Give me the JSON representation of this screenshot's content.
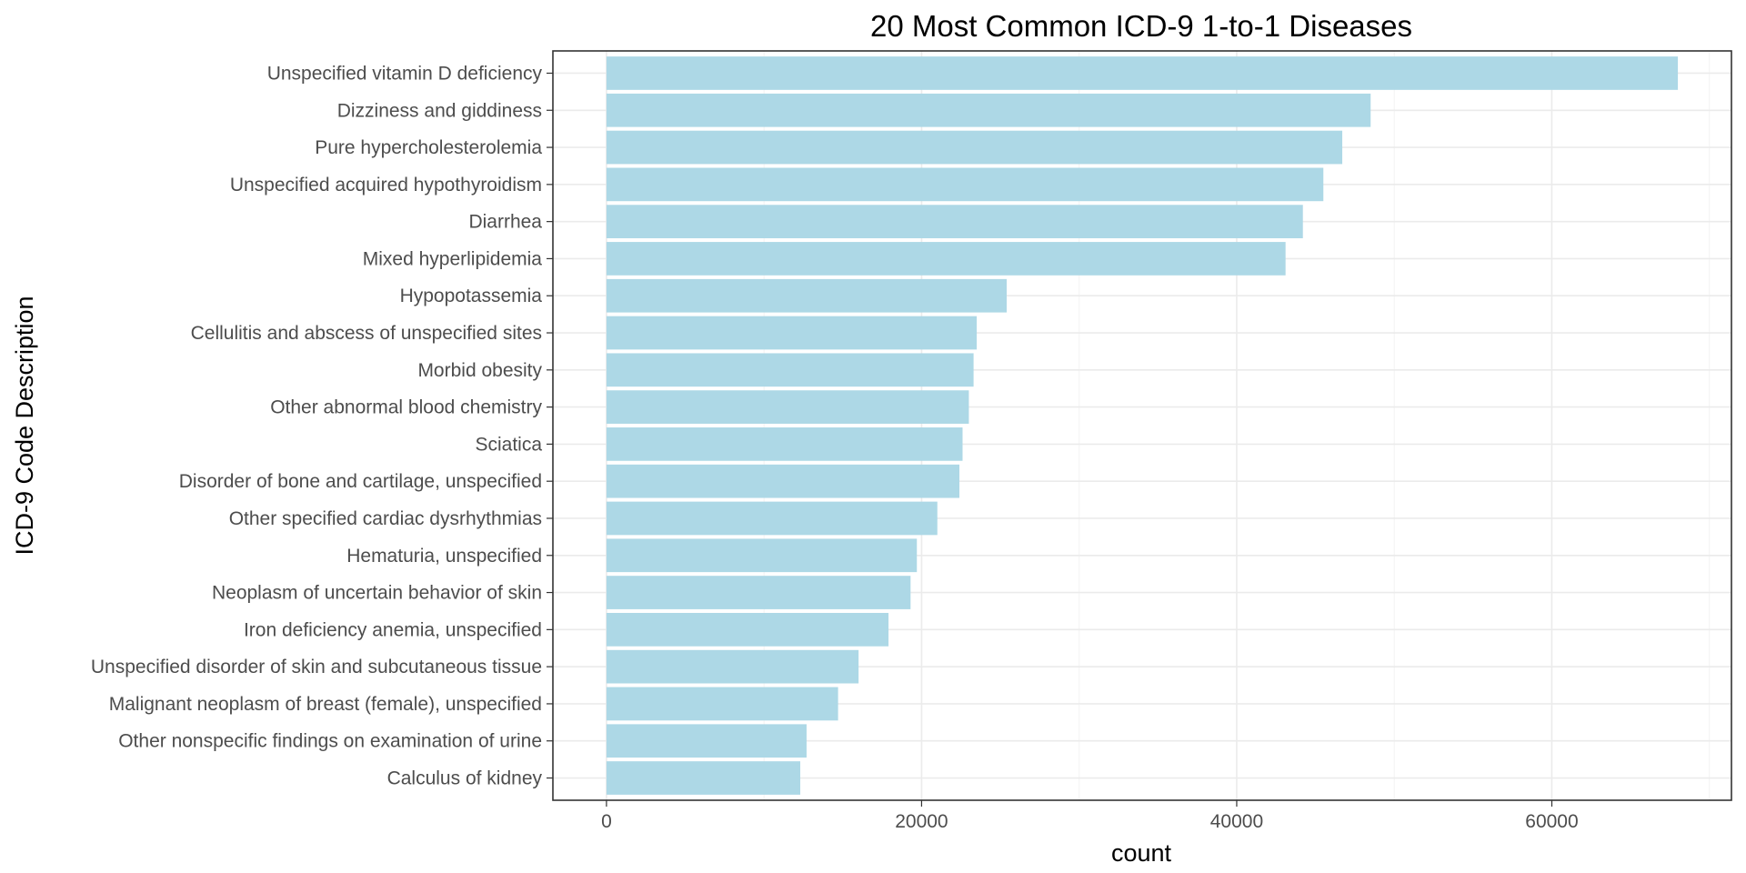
{
  "chart_data": {
    "type": "bar",
    "orientation": "horizontal",
    "title": "20 Most Common ICD-9 1-to-1 Diseases",
    "xlabel": "count",
    "ylabel": "ICD-9 Code Description",
    "bar_color": "#add8e6",
    "grid": true,
    "xlim": [
      -3400,
      71400
    ],
    "x_ticks": [
      0,
      20000,
      40000,
      60000
    ],
    "x_tick_labels": [
      "0",
      "20000",
      "40000",
      "60000"
    ],
    "categories": [
      "Unspecified vitamin D deficiency",
      "Dizziness and giddiness",
      "Pure hypercholesterolemia",
      "Unspecified acquired hypothyroidism",
      "Diarrhea",
      "Mixed hyperlipidemia",
      "Hypopotassemia",
      "Cellulitis and abscess of unspecified sites",
      "Morbid obesity",
      "Other abnormal blood chemistry",
      "Sciatica",
      "Disorder of bone and cartilage, unspecified",
      "Other specified cardiac dysrhythmias",
      "Hematuria, unspecified",
      "Neoplasm of uncertain behavior of skin",
      "Iron deficiency anemia, unspecified",
      "Unspecified disorder of skin and subcutaneous tissue",
      "Malignant neoplasm of breast (female), unspecified",
      "Other nonspecific findings on examination of urine",
      "Calculus of kidney"
    ],
    "values": [
      68000,
      48500,
      46700,
      45500,
      44200,
      43100,
      25400,
      23500,
      23300,
      23000,
      22600,
      22400,
      21000,
      19700,
      19300,
      17900,
      16000,
      14700,
      12700,
      12300
    ]
  }
}
